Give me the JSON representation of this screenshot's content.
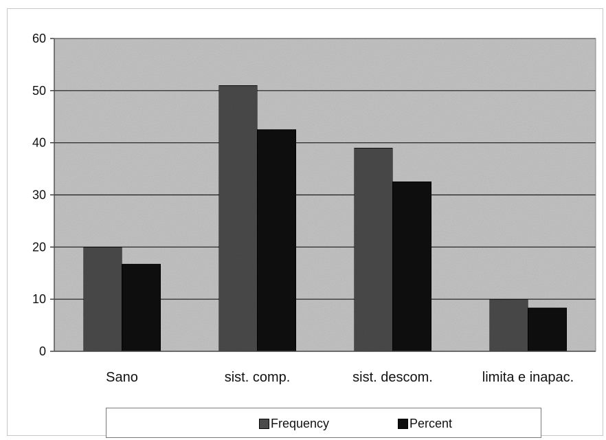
{
  "chart_data": {
    "type": "bar",
    "categories": [
      "Sano",
      "sist. comp.",
      "sist. descom.",
      "limita e inapac."
    ],
    "series": [
      {
        "name": "Frequency",
        "values": [
          20,
          51,
          39,
          10
        ],
        "color": "#4a4a4a"
      },
      {
        "name": "Percent",
        "values": [
          16.7,
          42.5,
          32.5,
          8.3
        ],
        "color": "#0e0e0e"
      }
    ],
    "title": "",
    "xlabel": "",
    "ylabel": "",
    "ylim": [
      0,
      60
    ],
    "yticks": [
      0,
      10,
      20,
      30,
      40,
      50,
      60
    ],
    "grid": true,
    "legend_position": "bottom",
    "plot_background": "#c4c4c4",
    "gridline_color": "#1a1a1a"
  }
}
